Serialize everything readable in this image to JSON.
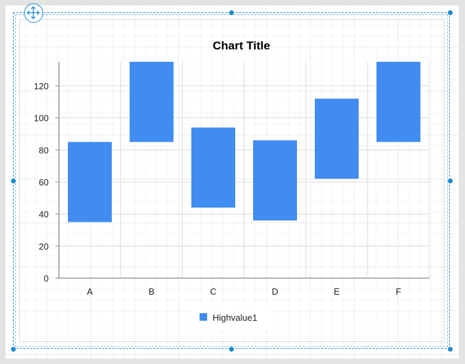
{
  "designer": {
    "move_icon": "move-arrows-icon",
    "selection_color": "#1e8bd0"
  },
  "chart_data": {
    "type": "bar",
    "subtype": "floating-range",
    "title": "Chart Title",
    "categories": [
      "A",
      "B",
      "C",
      "D",
      "E",
      "F"
    ],
    "series": [
      {
        "name": "Highvalue1",
        "color": "#418cf0",
        "low": [
          35,
          85,
          44,
          36,
          62,
          85
        ],
        "high": [
          85,
          135,
          94,
          86,
          112,
          135
        ]
      }
    ],
    "ylim": [
      0,
      135
    ],
    "yticks": [
      0,
      20,
      40,
      60,
      80,
      100,
      120
    ],
    "grid": true,
    "legend": "bottom-center"
  }
}
